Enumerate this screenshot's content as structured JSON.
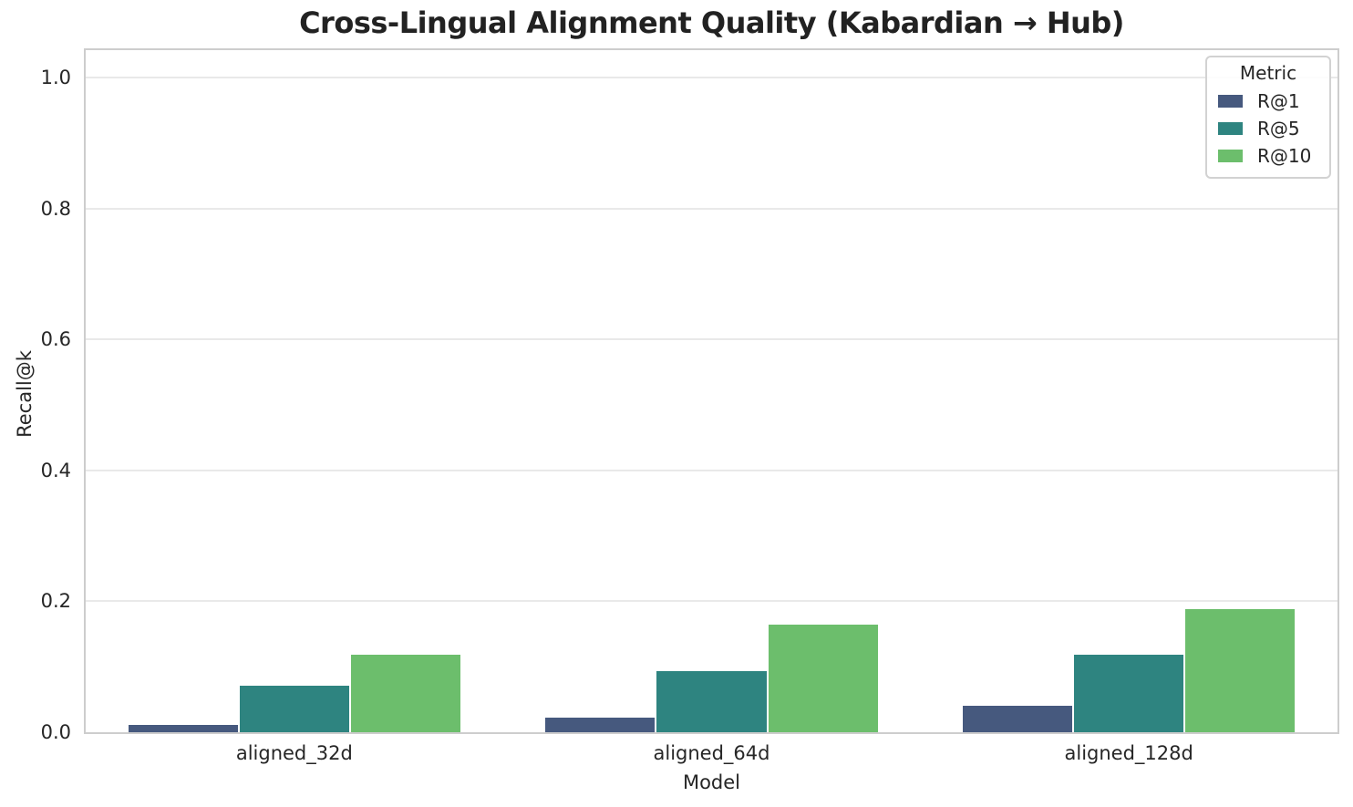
{
  "chart_data": {
    "type": "bar",
    "title": "Cross-Lingual Alignment Quality (Kabardian → Hub)",
    "xlabel": "Model",
    "ylabel": "Recall@k",
    "categories": [
      "aligned_32d",
      "aligned_64d",
      "aligned_128d"
    ],
    "series": [
      {
        "name": "R@1",
        "color": "#46597e",
        "values": [
          0.011,
          0.023,
          0.04
        ]
      },
      {
        "name": "R@5",
        "color": "#2e8480",
        "values": [
          0.071,
          0.093,
          0.118
        ]
      },
      {
        "name": "R@10",
        "color": "#6cbe6c",
        "values": [
          0.118,
          0.164,
          0.188
        ]
      }
    ],
    "legend_title": "Metric",
    "legend_position": "upper right",
    "ylim": [
      0,
      1.042
    ],
    "yticks": [
      0.0,
      0.2,
      0.4,
      0.6,
      0.8,
      1.0
    ],
    "ytick_labels": [
      "0.0",
      "0.2",
      "0.4",
      "0.6",
      "0.8",
      "1.0"
    ],
    "grid": "horizontal",
    "group_width_fraction": 0.8
  }
}
